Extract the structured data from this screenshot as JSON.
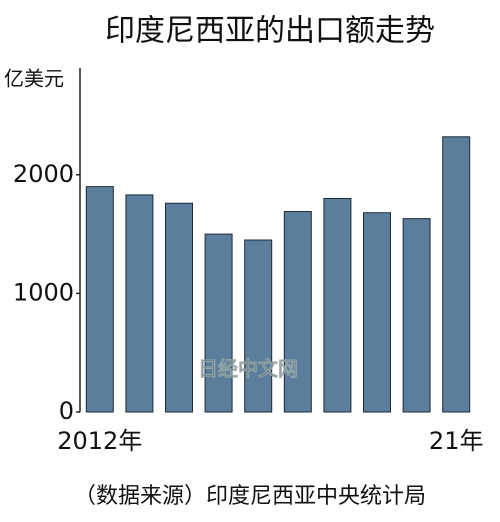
{
  "chart_data": {
    "type": "bar",
    "title": "印度尼西亚的出口额走势",
    "y_label": "亿美元",
    "categories": [
      "2012年",
      null,
      null,
      null,
      null,
      null,
      null,
      null,
      null,
      "21年"
    ],
    "values": [
      1900,
      1830,
      1760,
      1500,
      1450,
      1690,
      1800,
      1680,
      1630,
      2320
    ],
    "color": "#5b7e9c",
    "ylim": [
      0,
      2900
    ],
    "yticks": [
      0,
      1000,
      2000
    ],
    "grid": false,
    "source": "（数据来源）印度尼西亚中央统计局",
    "watermark": "日经中文网"
  }
}
